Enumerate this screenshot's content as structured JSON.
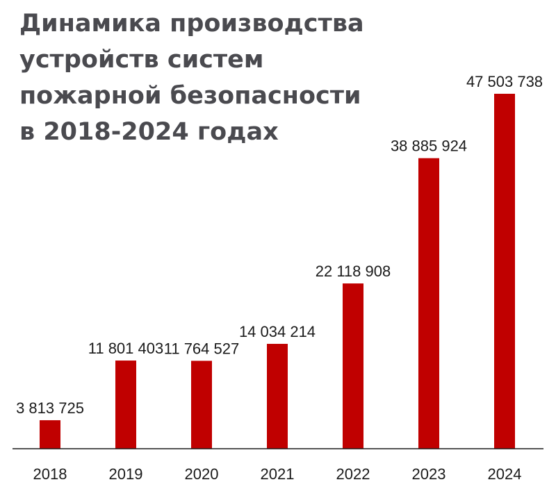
{
  "title_lines": [
    "Динамика производства",
    "устройств систем",
    "пожарной безопасности",
    "в 2018-2024 годах"
  ],
  "colors": {
    "bar": "#c00000",
    "axis": "#1a1a1a",
    "title": "#4a4a4f"
  },
  "chart_data": {
    "type": "bar",
    "title": "Динамика производства устройств систем пожарной безопасности в 2018-2024 годах",
    "categories": [
      "2018",
      "2019",
      "2020",
      "2021",
      "2022",
      "2023",
      "2024"
    ],
    "values": [
      3813725,
      11801403,
      11764527,
      14034214,
      22118908,
      38885924,
      47503738
    ],
    "value_labels": [
      "3 813 725",
      "11 801 403",
      "11 764 527",
      "14 034 214",
      "22 118 908",
      "38 885 924",
      "47 503 738"
    ],
    "xlabel": "",
    "ylabel": "",
    "ylim": [
      0,
      47503738
    ],
    "grid": false,
    "legend": "none"
  }
}
